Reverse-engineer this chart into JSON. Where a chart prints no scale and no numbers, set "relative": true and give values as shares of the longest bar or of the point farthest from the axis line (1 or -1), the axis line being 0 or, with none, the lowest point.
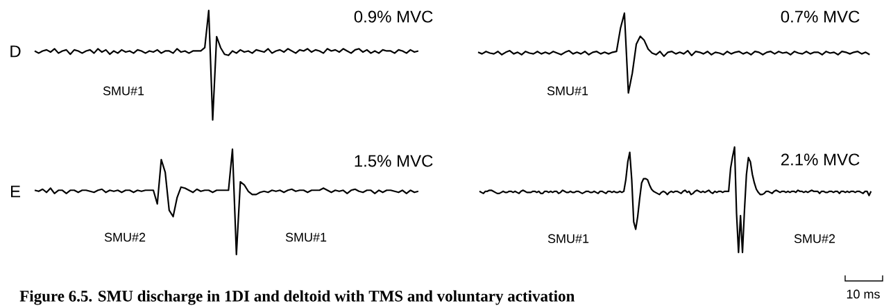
{
  "chart_data": [
    {
      "type": "line",
      "relative": true,
      "title": "0.9% MVC",
      "categories": [
        null,
        null,
        null,
        null,
        null,
        null,
        null,
        null,
        null,
        null,
        null,
        null,
        null,
        null,
        null,
        null,
        null,
        null,
        null,
        null,
        null,
        null,
        null,
        null,
        null,
        null,
        null,
        null,
        null,
        null,
        null,
        null,
        null,
        null,
        null,
        null,
        null,
        null,
        null,
        null,
        null,
        null,
        null,
        null,
        null,
        null,
        null,
        null,
        null,
        null,
        null,
        null,
        null,
        null,
        null,
        null,
        null,
        null,
        null,
        null,
        null,
        null,
        null,
        null,
        null,
        null,
        null,
        null,
        null,
        null,
        null,
        null,
        null,
        null,
        null,
        null,
        null,
        null,
        null,
        null,
        null,
        null,
        null,
        null,
        null,
        null,
        null,
        null,
        null,
        null,
        null,
        null,
        null,
        null,
        null,
        null,
        null,
        null
      ],
      "series": [
        {
          "color": "#000000",
          "values": [
            0.63,
            0.61,
            0.63,
            0.64,
            0.62,
            0.65,
            0.61,
            0.63,
            0.64,
            0.6,
            0.64,
            0.63,
            0.61,
            0.63,
            0.64,
            0.61,
            0.65,
            0.62,
            0.64,
            0.6,
            0.63,
            0.61,
            0.64,
            0.62,
            0.63,
            0.61,
            0.64,
            0.63,
            0.61,
            0.63,
            0.62,
            0.64,
            0.61,
            0.63,
            0.63,
            0.61,
            0.65,
            0.62,
            0.63,
            0.61,
            0.63,
            0.63,
            0.63,
            0.66,
            1,
            0,
            0.76,
            0.66,
            0.6,
            0.59,
            0.63,
            0.61,
            0.64,
            0.62,
            0.63,
            0.61,
            0.64,
            0.63,
            0.62,
            0.65,
            0.61,
            0.63,
            0.64,
            0.62,
            0.65,
            0.63,
            0.61,
            0.64,
            0.63,
            0.65,
            0.62,
            0.64,
            0.63,
            0.61,
            0.65,
            0.63,
            0.64,
            0.62,
            0.65,
            0.63,
            0.61,
            0.64,
            0.65,
            0.62,
            0.64,
            0.61,
            0.63,
            0.61,
            0.64,
            0.63,
            0.63,
            0.61,
            0.64,
            0.63,
            0.61,
            0.64,
            0.62,
            0.63
          ]
        }
      ],
      "annotations": [
        "D",
        "SMU#1"
      ]
    },
    {
      "type": "line",
      "relative": true,
      "title": "0.7% MVC",
      "categories": [
        null,
        null,
        null,
        null,
        null,
        null,
        null,
        null,
        null,
        null,
        null,
        null,
        null,
        null,
        null,
        null,
        null,
        null,
        null,
        null,
        null,
        null,
        null,
        null,
        null,
        null,
        null,
        null,
        null,
        null,
        null,
        null,
        null,
        null,
        null,
        null,
        null,
        null,
        null,
        null,
        null,
        null,
        null,
        null,
        null,
        null,
        null,
        null,
        null,
        null,
        null,
        null,
        null,
        null,
        null,
        null,
        null,
        null,
        null,
        null,
        null,
        null,
        null,
        null,
        null,
        null,
        null,
        null,
        null,
        null,
        null,
        null,
        null,
        null,
        null,
        null,
        null,
        null,
        null,
        null,
        null,
        null,
        null,
        null,
        null,
        null,
        null,
        null,
        null,
        null,
        null,
        null,
        null,
        null,
        null,
        null,
        null,
        null,
        null,
        null
      ],
      "series": [
        {
          "color": "#000000",
          "values": [
            0.51,
            0.49,
            0.52,
            0.5,
            0.49,
            0.52,
            0.48,
            0.51,
            0.53,
            0.49,
            0.51,
            0.48,
            0.52,
            0.5,
            0.49,
            0.52,
            0.49,
            0.51,
            0.49,
            0.52,
            0.5,
            0.48,
            0.51,
            0.53,
            0.49,
            0.51,
            0.49,
            0.52,
            0.48,
            0.51,
            0.52,
            0.49,
            0.51,
            0.49,
            0.51,
            0.52,
            0.81,
            1,
            0,
            0.25,
            0.61,
            0.71,
            0.66,
            0.55,
            0.5,
            0.48,
            0.52,
            0.46,
            0.51,
            0.52,
            0.49,
            0.51,
            0.49,
            0.53,
            0.47,
            0.52,
            0.51,
            0.49,
            0.52,
            0.48,
            0.51,
            0.5,
            0.48,
            0.52,
            0.49,
            0.51,
            0.52,
            0.49,
            0.51,
            0.48,
            0.52,
            0.51,
            0.48,
            0.51,
            0.52,
            0.49,
            0.52,
            0.5,
            0.51,
            0.48,
            0.52,
            0.5,
            0.49,
            0.52,
            0.49,
            0.51,
            0.51,
            0.48,
            0.52,
            0.5,
            0.51,
            0.48,
            0.52,
            0.51,
            0.49,
            0.51,
            0.52,
            0.49,
            0.51,
            0.48
          ]
        }
      ],
      "annotations": [
        "SMU#1"
      ]
    },
    {
      "type": "line",
      "relative": true,
      "title": "1.5% MVC",
      "categories": [
        null,
        null,
        null,
        null,
        null,
        null,
        null,
        null,
        null,
        null,
        null,
        null,
        null,
        null,
        null,
        null,
        null,
        null,
        null,
        null,
        null,
        null,
        null,
        null,
        null,
        null,
        null,
        null,
        null,
        null,
        null,
        null,
        null,
        null,
        null,
        null,
        null,
        null,
        null,
        null,
        null,
        null,
        null,
        null,
        null,
        null,
        null,
        null,
        null,
        null,
        null,
        null,
        null,
        null,
        null,
        null,
        null,
        null,
        null,
        null,
        null,
        null,
        null,
        null,
        null,
        null,
        null,
        null,
        null,
        null,
        null,
        null,
        null,
        null,
        null,
        null,
        null,
        null,
        null,
        null,
        null,
        null,
        null,
        null,
        null,
        null,
        null,
        null,
        null,
        null,
        null,
        null,
        null,
        null,
        null,
        null,
        null,
        null
      ],
      "series": [
        {
          "color": "#000000",
          "values": [
            0.61,
            0.6,
            0.62,
            0.59,
            0.63,
            0.58,
            0.61,
            0.61,
            0.58,
            0.61,
            0.61,
            0.59,
            0.61,
            0.61,
            0.6,
            0.59,
            0.61,
            0.62,
            0.59,
            0.61,
            0.6,
            0.61,
            0.59,
            0.61,
            0.61,
            0.59,
            0.61,
            0.6,
            0.61,
            0.61,
            0.61,
            0.48,
            0.9,
            0.78,
            0.42,
            0.36,
            0.54,
            0.64,
            0.63,
            0.61,
            0.59,
            0.62,
            0.6,
            0.61,
            0.61,
            0.59,
            0.61,
            0.61,
            0.61,
            0.61,
            1,
            0,
            0.69,
            0.66,
            0.6,
            0.57,
            0.57,
            0.59,
            0.6,
            0.59,
            0.61,
            0.6,
            0.61,
            0.59,
            0.61,
            0.62,
            0.6,
            0.61,
            0.61,
            0.59,
            0.61,
            0.61,
            0.61,
            0.63,
            0.61,
            0.59,
            0.61,
            0.6,
            0.61,
            0.58,
            0.61,
            0.62,
            0.6,
            0.59,
            0.61,
            0.61,
            0.58,
            0.61,
            0.59,
            0.61,
            0.61,
            0.6,
            0.59,
            0.61,
            0.58,
            0.61,
            0.59,
            0.6
          ]
        }
      ],
      "annotations": [
        "E",
        "SMU#2",
        "SMU#1",
        "Figure 6.5. SMU discharge in 1DI and deltoid with TMS and voluntary activation"
      ]
    },
    {
      "type": "line",
      "relative": true,
      "title": "2.1% MVC",
      "categories": [
        null,
        null,
        null,
        null,
        null,
        null,
        null,
        null,
        null,
        null,
        null,
        null,
        null,
        null,
        null,
        null,
        null,
        null,
        null,
        null,
        null,
        null,
        null,
        null,
        null,
        null,
        null,
        null,
        null,
        null,
        null,
        null,
        null,
        null,
        null,
        null,
        null,
        null,
        null,
        null,
        null,
        null,
        null,
        null,
        null,
        null,
        null,
        null,
        null,
        null,
        null,
        null,
        null,
        null,
        null,
        null,
        null,
        null,
        null,
        null,
        null,
        null,
        null,
        null,
        null,
        null,
        null,
        null,
        null,
        null,
        null,
        null,
        null,
        null,
        null,
        null,
        null,
        null,
        null,
        null,
        null,
        null,
        null,
        null,
        null,
        null,
        null,
        null,
        null,
        null,
        null,
        null,
        null,
        null,
        null,
        null,
        null,
        null,
        null,
        null,
        null,
        null,
        null,
        null,
        null,
        null,
        null,
        null,
        null,
        null,
        null,
        null,
        null,
        null,
        null,
        null,
        null,
        null,
        null,
        null,
        null,
        null,
        null,
        null,
        null,
        null,
        null,
        null,
        null,
        null,
        null,
        null,
        null,
        null,
        null,
        null,
        null,
        null,
        null,
        null,
        null,
        null,
        null,
        null,
        null,
        null,
        null,
        null,
        null,
        null,
        null,
        null,
        null,
        null,
        null,
        null,
        null,
        null,
        null,
        null,
        null,
        null,
        null,
        null,
        null,
        null,
        null,
        null,
        null,
        null,
        null,
        null,
        null,
        null,
        null,
        null,
        null,
        null,
        null,
        null,
        null,
        null,
        null,
        null,
        null,
        null,
        null,
        null,
        null,
        null,
        null,
        null,
        null,
        null,
        null,
        null,
        null,
        null,
        null
      ],
      "series": [
        {
          "color": "#000000",
          "values": [
            0.58,
            0.57,
            0.56,
            0.58,
            0.58,
            0.59,
            0.59,
            0.58,
            0.57,
            0.56,
            0.56,
            0.57,
            0.58,
            0.57,
            0.57,
            0.58,
            0.58,
            0.57,
            0.58,
            0.57,
            0.56,
            0.58,
            0.59,
            0.58,
            0.57,
            0.57,
            0.57,
            0.58,
            0.58,
            0.57,
            0.58,
            0.56,
            0.56,
            0.58,
            0.58,
            0.57,
            0.58,
            0.57,
            0.58,
            0.58,
            0.56,
            0.57,
            0.59,
            0.58,
            0.57,
            0.57,
            0.58,
            0.57,
            0.57,
            0.58,
            0.58,
            0.57,
            0.56,
            0.57,
            0.58,
            0.58,
            0.57,
            0.57,
            0.58,
            0.57,
            0.56,
            0.58,
            0.58,
            0.57,
            0.56,
            0.58,
            0.58,
            0.57,
            0.58,
            0.57,
            0.57,
            0.58,
            0.57,
            0.58,
            0.69,
            0.86,
            0.95,
            0.69,
            0.29,
            0.22,
            0.34,
            0.51,
            0.66,
            0.7,
            0.7,
            0.69,
            0.64,
            0.6,
            0.58,
            0.57,
            0.56,
            0.55,
            0.57,
            0.58,
            0.57,
            0.55,
            0.57,
            0.58,
            0.57,
            0.58,
            0.58,
            0.57,
            0.56,
            0.58,
            0.59,
            0.57,
            0.58,
            0.55,
            0.56,
            0.58,
            0.59,
            0.58,
            0.57,
            0.58,
            0.57,
            0.58,
            0.59,
            0.57,
            0.56,
            0.58,
            0.57,
            0.58,
            0.58,
            0.57,
            0.58,
            0.58,
            0.58,
            0.8,
            0.91,
            1,
            0.37,
            0,
            0.35,
            0,
            0.4,
            0.74,
            0.9,
            0.86,
            0.74,
            0.66,
            0.6,
            0.57,
            0.55,
            0.55,
            0.56,
            0.58,
            0.58,
            0.57,
            0.56,
            0.58,
            0.59,
            0.58,
            0.57,
            0.58,
            0.58,
            0.57,
            0.58,
            0.57,
            0.58,
            0.58,
            0.57,
            0.59,
            0.58,
            0.58,
            0.57,
            0.58,
            0.57,
            0.58,
            0.59,
            0.58,
            0.58,
            0.58,
            0.56,
            0.58,
            0.58,
            0.57,
            0.57,
            0.58,
            0.58,
            0.57,
            0.58,
            0.58,
            0.56,
            0.58,
            0.58,
            0.57,
            0.58,
            0.57,
            0.58,
            0.58,
            0.57,
            0.58,
            0.58,
            0.57,
            0.56,
            0.58,
            0.58,
            0.54,
            0.58
          ]
        }
      ],
      "annotations": [
        "SMU#1",
        "SMU#2",
        "10 ms"
      ]
    }
  ]
}
